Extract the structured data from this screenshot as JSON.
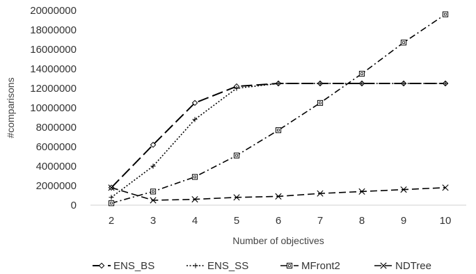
{
  "chart_data": {
    "type": "line",
    "x": [
      2,
      3,
      4,
      5,
      6,
      7,
      8,
      9,
      10
    ],
    "xlabel": "Number of objectives",
    "ylabel": "#comparisons",
    "ylim": [
      0,
      20000000
    ],
    "yticks": [
      0,
      2000000,
      4000000,
      6000000,
      8000000,
      10000000,
      12000000,
      14000000,
      16000000,
      18000000,
      20000000
    ],
    "grid": false,
    "legend_position": "bottom",
    "series": [
      {
        "name": "ENS_BS",
        "values": [
          1800000,
          6200000,
          10500000,
          12200000,
          12500000,
          12500000,
          12500000,
          12500000,
          12500000
        ],
        "marker": "diamond",
        "dash": "long-dash"
      },
      {
        "name": "ENS_SS",
        "values": [
          800000,
          4000000,
          8800000,
          12000000,
          12500000,
          12500000,
          12500000,
          12500000,
          12500000
        ],
        "marker": "plus",
        "dash": "dotted"
      },
      {
        "name": "MFront2",
        "values": [
          200000,
          1400000,
          2900000,
          5100000,
          7700000,
          10500000,
          13500000,
          16700000,
          19600000
        ],
        "marker": "square",
        "dash": "dash-dot"
      },
      {
        "name": "NDTree",
        "values": [
          1800000,
          500000,
          600000,
          800000,
          900000,
          1200000,
          1400000,
          1600000,
          1800000
        ],
        "marker": "x",
        "dash": "dashed"
      }
    ]
  }
}
